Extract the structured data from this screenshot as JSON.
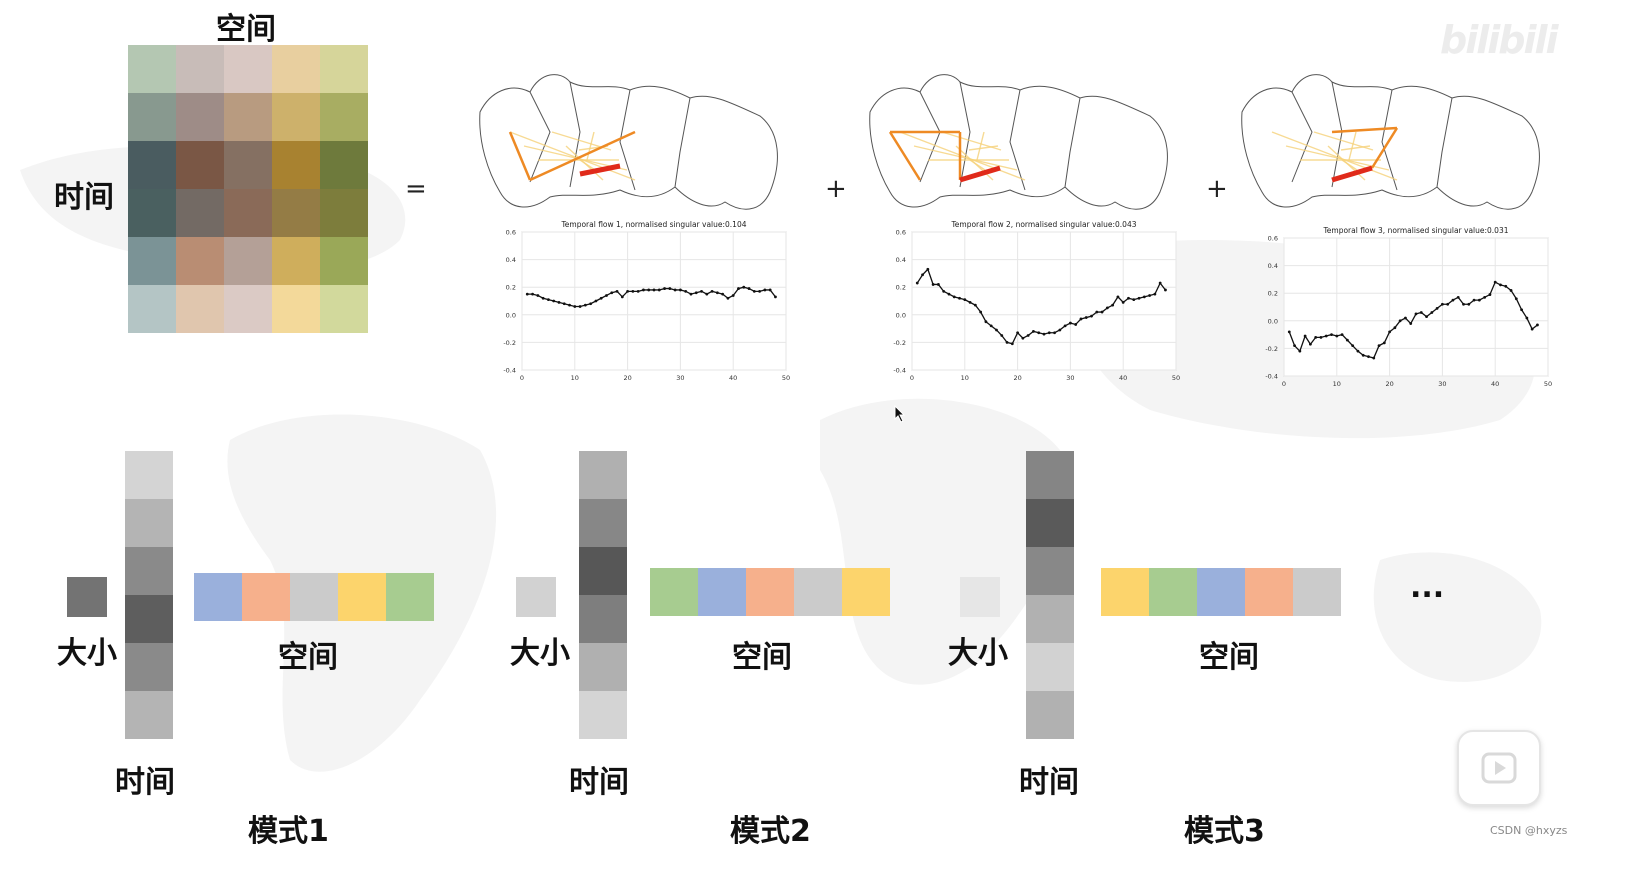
{
  "matrix": {
    "top_label": "空间",
    "side_label": "时间",
    "cells": [
      [
        "#b4c7b2",
        "#c8bcb8",
        "#d9c8c3",
        "#e8cf9f",
        "#d6d59a"
      ],
      [
        "#88998f",
        "#9e8c87",
        "#b89b80",
        "#cdb16b",
        "#a8ad62"
      ],
      [
        "#4a5c60",
        "#7a5745",
        "#857062",
        "#a88230",
        "#6e7a3c"
      ],
      [
        "#4a6060",
        "#736a64",
        "#8a6a58",
        "#947c45",
        "#7d7d3c"
      ],
      [
        "#7b9396",
        "#b98d73",
        "#b4a097",
        "#cfae5c",
        "#9aa858"
      ],
      [
        "#b4c5c5",
        "#e0c6ae",
        "#dbcac5",
        "#f3d99a",
        "#d2d99c"
      ]
    ]
  },
  "operators": {
    "equals": "=",
    "plus1": "+",
    "plus2": "+",
    "ellipsis": "..."
  },
  "plots": [
    {
      "title": "Temporal flow 1, normalised singular value:0.104"
    },
    {
      "title": "Temporal flow 2, normalised singular value:0.043"
    },
    {
      "title": "Temporal flow 3, normalised singular value:0.031"
    }
  ],
  "chart_data": [
    {
      "type": "line",
      "title": "Temporal flow 1, normalised singular value:0.104",
      "x": [
        1,
        2,
        3,
        4,
        5,
        6,
        7,
        8,
        9,
        10,
        11,
        12,
        13,
        14,
        15,
        16,
        17,
        18,
        19,
        20,
        21,
        22,
        23,
        24,
        25,
        26,
        27,
        28,
        29,
        30,
        31,
        32,
        33,
        34,
        35,
        36,
        37,
        38,
        39,
        40,
        41,
        42,
        43,
        44,
        45,
        46,
        47,
        48
      ],
      "y": [
        0.15,
        0.15,
        0.14,
        0.12,
        0.11,
        0.1,
        0.09,
        0.08,
        0.07,
        0.06,
        0.06,
        0.07,
        0.08,
        0.1,
        0.12,
        0.14,
        0.16,
        0.17,
        0.13,
        0.17,
        0.17,
        0.17,
        0.18,
        0.18,
        0.18,
        0.18,
        0.19,
        0.19,
        0.18,
        0.18,
        0.17,
        0.15,
        0.16,
        0.17,
        0.15,
        0.17,
        0.16,
        0.15,
        0.12,
        0.14,
        0.19,
        0.2,
        0.19,
        0.17,
        0.17,
        0.18,
        0.18,
        0.13
      ],
      "xlim": [
        0,
        50
      ],
      "ylim": [
        -0.4,
        0.6
      ],
      "xticks": [
        0,
        10,
        20,
        30,
        40,
        50
      ],
      "yticks": [
        -0.4,
        -0.2,
        0.0,
        0.2,
        0.4,
        0.6
      ],
      "xtick_labels": [
        "0",
        "10",
        "20",
        "30",
        "40",
        "50"
      ],
      "ytick_labels": [
        "-0.4",
        "-0.2",
        "0.0",
        "0.2",
        "0.4",
        "0.6"
      ],
      "grid": true
    },
    {
      "type": "line",
      "title": "Temporal flow 2, normalised singular value:0.043",
      "x": [
        1,
        2,
        3,
        4,
        5,
        6,
        7,
        8,
        9,
        10,
        11,
        12,
        13,
        14,
        15,
        16,
        17,
        18,
        19,
        20,
        21,
        22,
        23,
        24,
        25,
        26,
        27,
        28,
        29,
        30,
        31,
        32,
        33,
        34,
        35,
        36,
        37,
        38,
        39,
        40,
        41,
        42,
        43,
        44,
        45,
        46,
        47,
        48
      ],
      "y": [
        0.23,
        0.29,
        0.33,
        0.22,
        0.22,
        0.17,
        0.15,
        0.13,
        0.12,
        0.11,
        0.09,
        0.07,
        0.02,
        -0.05,
        -0.08,
        -0.11,
        -0.15,
        -0.2,
        -0.21,
        -0.13,
        -0.17,
        -0.15,
        -0.12,
        -0.13,
        -0.14,
        -0.13,
        -0.13,
        -0.11,
        -0.08,
        -0.06,
        -0.07,
        -0.03,
        -0.02,
        -0.01,
        0.02,
        0.02,
        0.05,
        0.07,
        0.13,
        0.09,
        0.12,
        0.11,
        0.12,
        0.13,
        0.14,
        0.15,
        0.23,
        0.18
      ],
      "xlim": [
        0,
        50
      ],
      "ylim": [
        -0.4,
        0.6
      ],
      "xticks": [
        0,
        10,
        20,
        30,
        40,
        50
      ],
      "yticks": [
        -0.4,
        -0.2,
        0.0,
        0.2,
        0.4,
        0.6
      ],
      "xtick_labels": [
        "0",
        "10",
        "20",
        "30",
        "40",
        "50"
      ],
      "ytick_labels": [
        "-0.4",
        "-0.2",
        "0.0",
        "0.2",
        "0.4",
        "0.6"
      ],
      "grid": true
    },
    {
      "type": "line",
      "title": "Temporal flow 3, normalised singular value:0.031",
      "x": [
        1,
        2,
        3,
        4,
        5,
        6,
        7,
        8,
        9,
        10,
        11,
        12,
        13,
        14,
        15,
        16,
        17,
        18,
        19,
        20,
        21,
        22,
        23,
        24,
        25,
        26,
        27,
        28,
        29,
        30,
        31,
        32,
        33,
        34,
        35,
        36,
        37,
        38,
        39,
        40,
        41,
        42,
        43,
        44,
        45,
        46,
        47,
        48
      ],
      "y": [
        -0.08,
        -0.18,
        -0.22,
        -0.11,
        -0.17,
        -0.12,
        -0.12,
        -0.11,
        -0.1,
        -0.11,
        -0.1,
        -0.14,
        -0.18,
        -0.22,
        -0.25,
        -0.26,
        -0.27,
        -0.18,
        -0.16,
        -0.08,
        -0.05,
        0.0,
        0.02,
        -0.02,
        0.05,
        0.06,
        0.03,
        0.06,
        0.09,
        0.12,
        0.12,
        0.15,
        0.17,
        0.12,
        0.12,
        0.15,
        0.15,
        0.17,
        0.19,
        0.28,
        0.26,
        0.25,
        0.22,
        0.16,
        0.08,
        0.02,
        -0.06,
        -0.03
      ],
      "xlim": [
        0,
        50
      ],
      "ylim": [
        -0.4,
        0.6
      ],
      "xticks": [
        0,
        10,
        20,
        30,
        40,
        50
      ],
      "yticks": [
        -0.4,
        -0.2,
        0.0,
        0.2,
        0.4,
        0.6
      ],
      "xtick_labels": [
        "0",
        "10",
        "20",
        "30",
        "40",
        "50"
      ],
      "ytick_labels": [
        "-0.4",
        "-0.2",
        "0.0",
        "0.2",
        "0.4",
        "0.6"
      ],
      "grid": true
    }
  ],
  "modes": [
    {
      "size_label": "大小",
      "time_label": "时间",
      "space_label": "空间",
      "mode_label": "模式1",
      "size_color": "#737373",
      "time_colors": [
        "#d4d4d4",
        "#b4b4b4",
        "#8a8a8a",
        "#5e5e5e",
        "#8a8a8a",
        "#b4b4b4"
      ],
      "space_colors": [
        "#9ab0dc",
        "#f6b08c",
        "#cbcbcb",
        "#fcd46c",
        "#a7cc90"
      ]
    },
    {
      "size_label": "大小",
      "time_label": "时间",
      "space_label": "空间",
      "mode_label": "模式2",
      "size_color": "#d2d2d2",
      "time_colors": [
        "#b0b0b0",
        "#878787",
        "#575757",
        "#7e7e7e",
        "#b0b0b0",
        "#d4d4d4"
      ],
      "space_colors": [
        "#a7cc90",
        "#9ab0dc",
        "#f6b08c",
        "#cbcbcb",
        "#fcd46c"
      ]
    },
    {
      "size_label": "大小",
      "time_label": "时间",
      "space_label": "空间",
      "mode_label": "模式3",
      "size_color": "#e6e6e6",
      "time_colors": [
        "#858585",
        "#5a5a5a",
        "#888888",
        "#b1b1b1",
        "#d2d2d2",
        "#b1b1b1"
      ],
      "space_colors": [
        "#fcd46c",
        "#a7cc90",
        "#9ab0dc",
        "#f6b08c",
        "#cbcbcb"
      ]
    }
  ],
  "watermark": "bilibili",
  "credit": "CSDN @hxyzs"
}
